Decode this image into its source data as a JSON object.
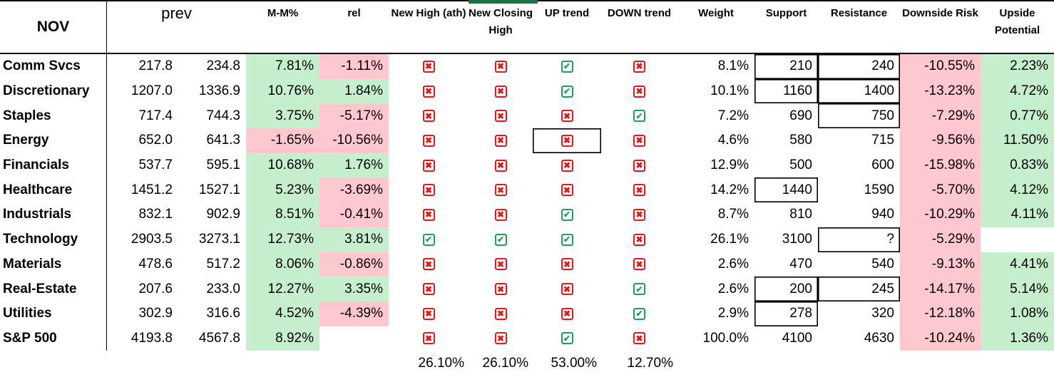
{
  "table": {
    "month_label": "NOV",
    "prev_label": "prev",
    "col_headers": [
      "M-M%",
      "rel",
      "New High (ath)",
      "New Closing High",
      "UP trend",
      "DOWN trend",
      "Weight",
      "Support",
      "Resistance",
      "Downside Risk",
      "Upside Potential"
    ],
    "rows": [
      {
        "name": "Comm Svcs",
        "prev1": "217.8",
        "prev2": "234.8",
        "mm": "7.81%",
        "mm_state": "pos",
        "rel": "-1.11%",
        "rel_state": "neg",
        "new_high": false,
        "new_closing_high": false,
        "up_trend": true,
        "down_trend": false,
        "weight": "8.1%",
        "support": "210",
        "support_boxed": true,
        "resistance": "240",
        "resistance_boxed": true,
        "downside": "-10.55%",
        "upside": "2.23%"
      },
      {
        "name": "Discretionary",
        "prev1": "1207.0",
        "prev2": "1336.9",
        "mm": "10.76%",
        "mm_state": "pos",
        "rel": "1.84%",
        "rel_state": "pos",
        "new_high": false,
        "new_closing_high": false,
        "up_trend": true,
        "down_trend": false,
        "weight": "10.1%",
        "support": "1160",
        "support_boxed": true,
        "resistance": "1400",
        "resistance_boxed": true,
        "downside": "-13.23%",
        "upside": "4.72%"
      },
      {
        "name": "Staples",
        "prev1": "717.4",
        "prev2": "744.3",
        "mm": "3.75%",
        "mm_state": "pos",
        "rel": "-5.17%",
        "rel_state": "neg",
        "new_high": false,
        "new_closing_high": false,
        "up_trend": false,
        "down_trend": true,
        "weight": "7.2%",
        "support": "690",
        "support_boxed": false,
        "resistance": "750",
        "resistance_boxed": true,
        "downside": "-7.29%",
        "upside": "0.77%"
      },
      {
        "name": "Energy",
        "prev1": "652.0",
        "prev2": "641.3",
        "mm": "-1.65%",
        "mm_state": "neg",
        "rel": "-10.56%",
        "rel_state": "neg",
        "new_high": false,
        "new_closing_high": false,
        "up_trend": false,
        "up_boxed": true,
        "down_trend": false,
        "weight": "4.6%",
        "support": "580",
        "support_boxed": false,
        "resistance": "715",
        "resistance_boxed": false,
        "downside": "-9.56%",
        "upside": "11.50%"
      },
      {
        "name": "Financials",
        "prev1": "537.7",
        "prev2": "595.1",
        "mm": "10.68%",
        "mm_state": "pos",
        "rel": "1.76%",
        "rel_state": "pos",
        "new_high": false,
        "new_closing_high": false,
        "up_trend": false,
        "down_trend": false,
        "weight": "12.9%",
        "support": "500",
        "support_boxed": false,
        "resistance": "600",
        "resistance_boxed": false,
        "downside": "-15.98%",
        "upside": "0.83%"
      },
      {
        "name": "Healthcare",
        "prev1": "1451.2",
        "prev2": "1527.1",
        "mm": "5.23%",
        "mm_state": "pos",
        "rel": "-3.69%",
        "rel_state": "neg",
        "new_high": false,
        "new_closing_high": false,
        "up_trend": false,
        "down_trend": false,
        "weight": "14.2%",
        "support": "1440",
        "support_boxed": true,
        "resistance": "1590",
        "resistance_boxed": false,
        "downside": "-5.70%",
        "upside": "4.12%"
      },
      {
        "name": "Industrials",
        "prev1": "832.1",
        "prev2": "902.9",
        "mm": "8.51%",
        "mm_state": "pos",
        "rel": "-0.41%",
        "rel_state": "neg",
        "new_high": false,
        "new_closing_high": false,
        "up_trend": true,
        "down_trend": false,
        "weight": "8.7%",
        "support": "810",
        "support_boxed": false,
        "resistance": "940",
        "resistance_boxed": false,
        "downside": "-10.29%",
        "upside": "4.11%"
      },
      {
        "name": "Technology",
        "prev1": "2903.5",
        "prev2": "3273.1",
        "mm": "12.73%",
        "mm_state": "pos",
        "rel": "3.81%",
        "rel_state": "pos",
        "new_high": true,
        "new_closing_high": true,
        "up_trend": true,
        "down_trend": false,
        "weight": "26.1%",
        "support": "3100",
        "support_boxed": false,
        "resistance": "?",
        "resistance_boxed": true,
        "downside": "-5.29%",
        "upside": ""
      },
      {
        "name": "Materials",
        "prev1": "478.6",
        "prev2": "517.2",
        "mm": "8.06%",
        "mm_state": "pos",
        "rel": "-0.86%",
        "rel_state": "neg",
        "new_high": false,
        "new_closing_high": false,
        "up_trend": false,
        "down_trend": false,
        "weight": "2.6%",
        "support": "470",
        "support_boxed": false,
        "resistance": "540",
        "resistance_boxed": false,
        "downside": "-9.13%",
        "upside": "4.41%"
      },
      {
        "name": "Real-Estate",
        "prev1": "207.6",
        "prev2": "233.0",
        "mm": "12.27%",
        "mm_state": "pos",
        "rel": "3.35%",
        "rel_state": "pos",
        "new_high": false,
        "new_closing_high": false,
        "up_trend": false,
        "down_trend": true,
        "weight": "2.6%",
        "support": "200",
        "support_boxed": true,
        "resistance": "245",
        "resistance_boxed": true,
        "downside": "-14.17%",
        "upside": "5.14%"
      },
      {
        "name": "Utilities",
        "prev1": "302.9",
        "prev2": "316.6",
        "mm": "4.52%",
        "mm_state": "pos",
        "rel": "-4.39%",
        "rel_state": "neg",
        "new_high": false,
        "new_closing_high": false,
        "up_trend": false,
        "down_trend": true,
        "weight": "2.9%",
        "support": "278",
        "support_boxed": true,
        "resistance": "320",
        "resistance_boxed": false,
        "downside": "-12.18%",
        "upside": "1.08%"
      },
      {
        "name": "S&P 500",
        "prev1": "4193.8",
        "prev2": "4567.8",
        "mm": "8.92%",
        "mm_state": "pos",
        "rel": "",
        "rel_state": "blank",
        "new_high": false,
        "new_closing_high": false,
        "up_trend": true,
        "down_trend": false,
        "weight": "100.0%",
        "support": "4100",
        "support_boxed": false,
        "resistance": "4630",
        "resistance_boxed": false,
        "downside": "-10.24%",
        "upside": "1.36%"
      }
    ],
    "summary": {
      "new_high": "26.10%",
      "new_closing_high": "26.10%",
      "up_trend": "53.00%",
      "down_trend": "12.70%"
    }
  },
  "icons": {
    "checked": "✔",
    "crossed": "✖"
  },
  "colors": {
    "positive_bg": "#C6EFCE",
    "positive_text": "#1E7B3C",
    "negative_bg": "#FFC7CE",
    "negative_text": "#B01220",
    "checkbox_red": "#E11818",
    "checkbox_green": "#1FA05A",
    "header_accent_bar": "#1E7145"
  }
}
